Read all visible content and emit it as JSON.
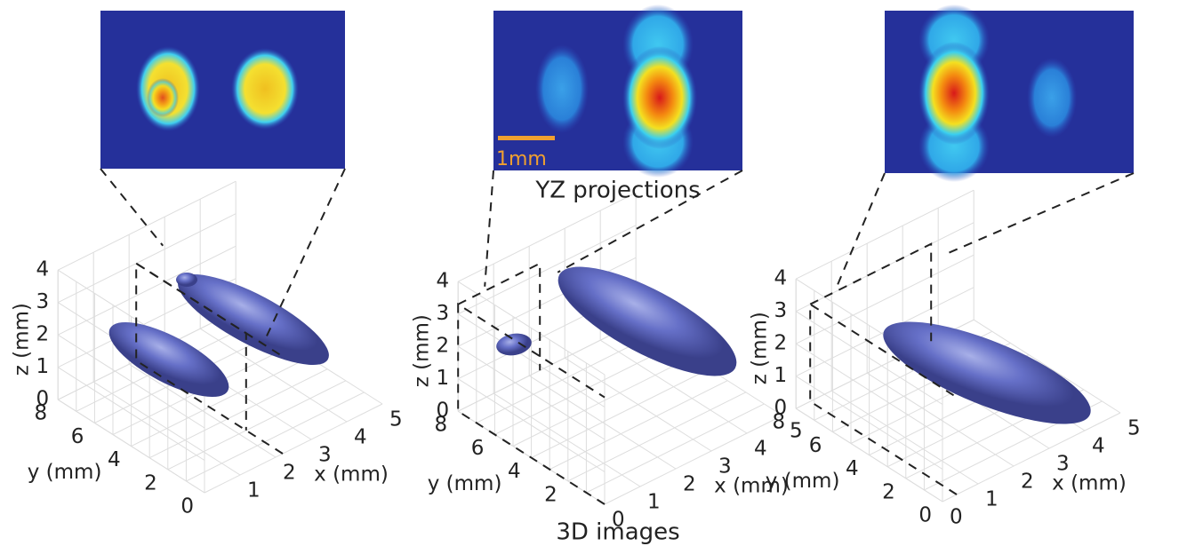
{
  "projections_label": "YZ projections",
  "images_label": "3D images",
  "scale_bar_label": "1mm",
  "panels": [
    {
      "z_label": "z (mm)",
      "y_label": "y (mm)",
      "x_label": "x (mm)",
      "z_ticks": [
        0,
        1,
        2,
        3,
        4
      ],
      "y_ticks": [
        8,
        6,
        4,
        2,
        0
      ],
      "x_ticks": [
        1,
        2,
        3,
        4,
        5
      ]
    },
    {
      "z_label": "z (mm)",
      "y_label": "y (mm)",
      "x_label": "x (mm)",
      "z_ticks": [
        0,
        1,
        2,
        3,
        4
      ],
      "y_ticks": [
        8,
        6,
        4,
        2
      ],
      "x_ticks": [
        0,
        1,
        2,
        3,
        4,
        5
      ]
    },
    {
      "z_label": "z (mm)",
      "y_label": "y (mm)",
      "x_label": "x (mm)",
      "z_ticks": [
        0,
        1,
        2,
        3,
        4
      ],
      "y_ticks": [
        8,
        6,
        4,
        2,
        0
      ],
      "x_ticks": [
        0,
        1,
        2,
        3,
        4,
        5
      ]
    }
  ]
}
